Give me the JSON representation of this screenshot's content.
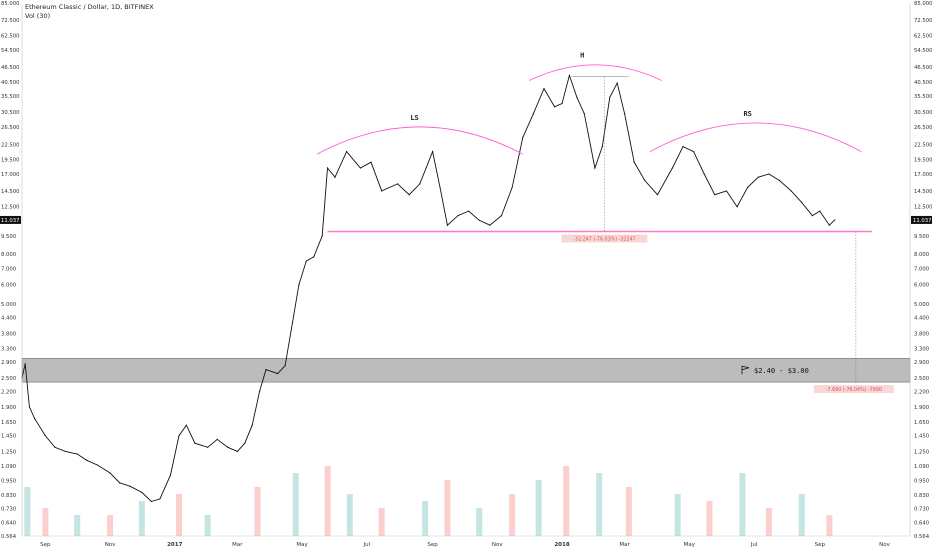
{
  "header": {
    "title": "Ethereum Classic / Dollar, 1D, BITFINEX",
    "volume_label": "Vol (30)"
  },
  "chart_data": {
    "type": "line",
    "title": "Ethereum Classic / Dollar, 1D, BITFINEX",
    "y_scale": "log",
    "ylim": [
      0.564,
      85
    ],
    "y_ticks": [
      "85.000",
      "72.500",
      "62.500",
      "54.500",
      "46.500",
      "40.500",
      "35.500",
      "30.500",
      "26.500",
      "22.500",
      "19.500",
      "17.000",
      "14.500",
      "12.500",
      "11.037",
      "9.500",
      "8.000",
      "7.000",
      "6.000",
      "5.000",
      "4.400",
      "3.800",
      "3.300",
      "2.900",
      "2.500",
      "2.200",
      "1.900",
      "1.650",
      "1.450",
      "1.250",
      "1.090",
      "0.950",
      "0.830",
      "0.730",
      "0.640",
      "0.564"
    ],
    "y_tick_values": [
      85,
      72.5,
      62.5,
      54.5,
      46.5,
      40.5,
      35.5,
      30.5,
      26.5,
      22.5,
      19.5,
      17,
      14.5,
      12.5,
      9.5,
      8,
      7,
      6,
      5,
      4.4,
      3.8,
      3.3,
      2.9,
      2.5,
      2.2,
      1.9,
      1.65,
      1.45,
      1.25,
      1.09,
      0.95,
      0.83,
      0.73,
      0.64,
      0.564
    ],
    "x_ticks": [
      "Sep",
      "Nov",
      "2017",
      "Mar",
      "May",
      "Jul",
      "Sep",
      "Nov",
      "2018",
      "Mar",
      "May",
      "Jul",
      "Sep",
      "Nov"
    ],
    "x_tick_dates": [
      "2016-09-01",
      "2016-11-01",
      "2017-01-01",
      "2017-03-01",
      "2017-05-01",
      "2017-07-01",
      "2017-09-01",
      "2017-11-01",
      "2018-01-01",
      "2018-03-01",
      "2018-05-01",
      "2018-07-01",
      "2018-09-01",
      "2018-11-01"
    ],
    "x_range": [
      "2016-08-10",
      "2018-11-25"
    ],
    "current_price": "11.037",
    "series": [
      {
        "values": [
          [
            "2016-08-10",
            2.5
          ],
          [
            "2016-08-13",
            2.85
          ],
          [
            "2016-08-17",
            1.9
          ],
          [
            "2016-08-22",
            1.7
          ],
          [
            "2016-09-01",
            1.45
          ],
          [
            "2016-09-10",
            1.3
          ],
          [
            "2016-09-20",
            1.25
          ],
          [
            "2016-10-01",
            1.22
          ],
          [
            "2016-10-10",
            1.15
          ],
          [
            "2016-10-20",
            1.1
          ],
          [
            "2016-11-01",
            1.02
          ],
          [
            "2016-11-10",
            0.93
          ],
          [
            "2016-11-20",
            0.9
          ],
          [
            "2016-12-01",
            0.85
          ],
          [
            "2016-12-10",
            0.78
          ],
          [
            "2016-12-18",
            0.8
          ],
          [
            "2016-12-28",
            1.0
          ],
          [
            "2017-01-05",
            1.45
          ],
          [
            "2017-01-12",
            1.6
          ],
          [
            "2017-01-20",
            1.35
          ],
          [
            "2017-02-01",
            1.3
          ],
          [
            "2017-02-10",
            1.4
          ],
          [
            "2017-02-20",
            1.3
          ],
          [
            "2017-03-01",
            1.25
          ],
          [
            "2017-03-08",
            1.35
          ],
          [
            "2017-03-15",
            1.6
          ],
          [
            "2017-03-22",
            2.2
          ],
          [
            "2017-03-28",
            2.7
          ],
          [
            "2017-04-08",
            2.6
          ],
          [
            "2017-04-15",
            2.8
          ],
          [
            "2017-04-22",
            4.2
          ],
          [
            "2017-04-28",
            6.0
          ],
          [
            "2017-05-05",
            7.5
          ],
          [
            "2017-05-12",
            7.8
          ],
          [
            "2017-05-20",
            9.5
          ],
          [
            "2017-05-25",
            18.0
          ],
          [
            "2017-06-01",
            16.5
          ],
          [
            "2017-06-12",
            21.0
          ],
          [
            "2017-06-25",
            18.0
          ],
          [
            "2017-07-05",
            19.0
          ],
          [
            "2017-07-15",
            14.5
          ],
          [
            "2017-07-30",
            15.5
          ],
          [
            "2017-08-10",
            14.0
          ],
          [
            "2017-08-20",
            15.5
          ],
          [
            "2017-09-01",
            21.0
          ],
          [
            "2017-09-08",
            15.0
          ],
          [
            "2017-09-15",
            10.5
          ],
          [
            "2017-09-25",
            11.5
          ],
          [
            "2017-10-05",
            12.0
          ],
          [
            "2017-10-15",
            11.0
          ],
          [
            "2017-10-25",
            10.5
          ],
          [
            "2017-11-05",
            11.5
          ],
          [
            "2017-11-15",
            15.0
          ],
          [
            "2017-11-25",
            24.0
          ],
          [
            "2017-12-05",
            30.0
          ],
          [
            "2017-12-15",
            38.0
          ],
          [
            "2017-12-25",
            32.0
          ],
          [
            "2018-01-01",
            33.0
          ],
          [
            "2018-01-08",
            43.0
          ],
          [
            "2018-01-15",
            35.0
          ],
          [
            "2018-01-22",
            30.0
          ],
          [
            "2018-02-01",
            18.0
          ],
          [
            "2018-02-08",
            22.0
          ],
          [
            "2018-02-15",
            35.0
          ],
          [
            "2018-02-22",
            40.0
          ],
          [
            "2018-03-01",
            30.0
          ],
          [
            "2018-03-10",
            19.0
          ],
          [
            "2018-03-20",
            16.0
          ],
          [
            "2018-04-01",
            14.0
          ],
          [
            "2018-04-15",
            18.0
          ],
          [
            "2018-04-25",
            22.0
          ],
          [
            "2018-05-05",
            21.0
          ],
          [
            "2018-05-15",
            17.0
          ],
          [
            "2018-05-25",
            14.0
          ],
          [
            "2018-06-05",
            14.5
          ],
          [
            "2018-06-15",
            12.5
          ],
          [
            "2018-06-25",
            15.0
          ],
          [
            "2018-07-05",
            16.5
          ],
          [
            "2018-07-15",
            17.0
          ],
          [
            "2018-07-25",
            16.0
          ],
          [
            "2018-08-05",
            14.5
          ],
          [
            "2018-08-15",
            13.0
          ],
          [
            "2018-08-25",
            11.5
          ],
          [
            "2018-09-01",
            12.0
          ],
          [
            "2018-09-10",
            10.5
          ],
          [
            "2018-09-15",
            11.037
          ]
        ]
      }
    ],
    "volume_bars": [
      [
        "2016-08-15",
        7
      ],
      [
        "2016-09-01",
        4
      ],
      [
        "2016-10-01",
        3
      ],
      [
        "2016-11-01",
        3
      ],
      [
        "2016-12-01",
        5
      ],
      [
        "2017-01-05",
        6
      ],
      [
        "2017-02-01",
        3
      ],
      [
        "2017-03-20",
        7
      ],
      [
        "2017-04-25",
        9
      ],
      [
        "2017-05-25",
        10
      ],
      [
        "2017-06-15",
        6
      ],
      [
        "2017-07-15",
        4
      ],
      [
        "2017-08-25",
        5
      ],
      [
        "2017-09-15",
        8
      ],
      [
        "2017-10-15",
        4
      ],
      [
        "2017-11-15",
        6
      ],
      [
        "2017-12-10",
        8
      ],
      [
        "2018-01-05",
        10
      ],
      [
        "2018-02-05",
        9
      ],
      [
        "2018-03-05",
        7
      ],
      [
        "2018-04-20",
        6
      ],
      [
        "2018-05-20",
        5
      ],
      [
        "2018-06-20",
        9
      ],
      [
        "2018-07-15",
        4
      ],
      [
        "2018-08-15",
        6
      ],
      [
        "2018-09-10",
        3
      ]
    ],
    "annotations": {
      "shoulder_left": "LS",
      "head": "H",
      "shoulder_right": "RS",
      "head_measure": "-32.247 (-76.03%) -32247",
      "target_measure": "-7.690 (-76.04%) -7690",
      "target_zone": "$2.40 - $3.00",
      "neckline_price": 9.9,
      "target_zone_range": [
        2.4,
        3.0
      ],
      "head_top": 42.5
    },
    "colors": {
      "up": "#26a69a",
      "down": "#ef5350",
      "pattern": "#ff5cd6",
      "neckline": "#ff79c6",
      "zone": "#b0b0b0",
      "measure_box": "#f8d7d7",
      "measure_text": "#d9534f"
    }
  }
}
